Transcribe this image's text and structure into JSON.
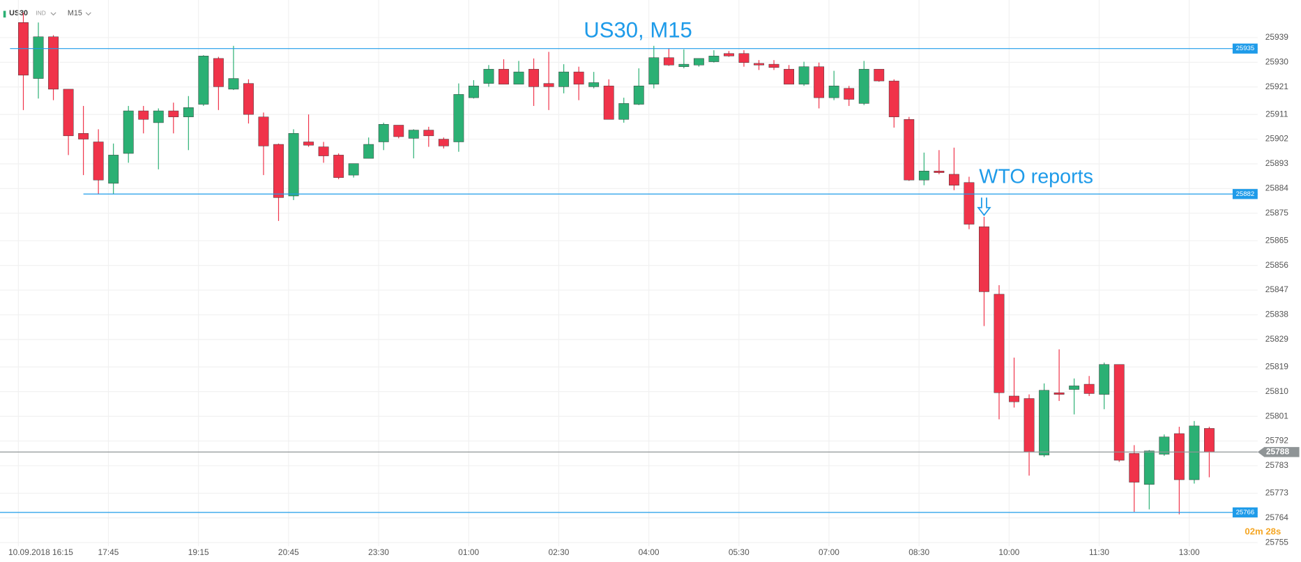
{
  "header": {
    "symbol": "US30",
    "class": "IND",
    "timeframe": "M15"
  },
  "chart_data": {
    "type": "candlestick",
    "title": "US30, M15",
    "annotation": {
      "text": "WTO reports",
      "index": 64
    },
    "countdown": "02m 28s",
    "up_color": "#2bb074",
    "down_color": "#f0334a",
    "grid": true,
    "categories": [
      "10.09.2018 16:15",
      null,
      null,
      null,
      null,
      null,
      "17:45",
      null,
      null,
      null,
      null,
      null,
      "19:15",
      null,
      null,
      null,
      null,
      null,
      "20:45",
      null,
      null,
      null,
      null,
      null,
      "23:30",
      null,
      null,
      null,
      null,
      null,
      "01:00",
      null,
      null,
      null,
      null,
      null,
      "02:30",
      null,
      null,
      null,
      null,
      null,
      "04:00",
      null,
      null,
      null,
      null,
      null,
      "05:30",
      null,
      null,
      null,
      null,
      null,
      "07:00",
      null,
      null,
      null,
      null,
      null,
      "08:30",
      null,
      null,
      null,
      null,
      null,
      "10:00",
      null,
      null,
      null,
      null,
      null,
      "11:30",
      null,
      null,
      null,
      null,
      null,
      "13:00",
      null
    ],
    "open": [
      25944.5,
      25924.1,
      25939.3,
      25920.2,
      25904.1,
      25901.0,
      25885.9,
      25896.8,
      25912.3,
      25908.0,
      25912.3,
      25910.1,
      25914.7,
      25931.4,
      25920.2,
      25922.3,
      25910.1,
      25900.1,
      25881.3,
      25901.0,
      25899.2,
      25896.2,
      25888.9,
      25895.0,
      25901.0,
      25907.1,
      25902.3,
      25905.3,
      25902.0,
      25901.0,
      25917.1,
      25922.3,
      25927.5,
      25922.0,
      25927.5,
      25922.3,
      25921.1,
      25926.5,
      25921.1,
      25921.4,
      25909.2,
      25914.7,
      25922.0,
      25931.7,
      25928.4,
      25929.0,
      25930.2,
      25933.2,
      25933.2,
      25929.6,
      25929.3,
      25927.5,
      25922.0,
      25928.4,
      25917.1,
      25920.5,
      25915.0,
      25927.5,
      25923.2,
      25909.2,
      25887.1,
      25890.4,
      25889.2,
      25886.2,
      25870.1,
      25845.5,
      25808.4,
      25807.5,
      25786.9,
      25809.6,
      25810.8,
      25812.7,
      25809.0,
      25819.9,
      25787.5,
      25776.2,
      25787.2,
      25794.7,
      25777.9,
      25796.6
    ],
    "high": [
      25948.1,
      25944.5,
      25939.9,
      25920.2,
      25914.1,
      25905.6,
      25900.4,
      25914.1,
      25914.1,
      25913.2,
      25915.3,
      25917.7,
      25932.6,
      25932.0,
      25936.0,
      25923.8,
      25911.7,
      25900.4,
      25905.6,
      25911.0,
      25901.0,
      25896.8,
      25893.1,
      25902.6,
      25908.0,
      25907.1,
      25905.6,
      25906.5,
      25902.6,
      25922.3,
      25923.5,
      25929.0,
      25931.1,
      25930.5,
      25931.4,
      25933.8,
      25929.3,
      25928.4,
      25926.5,
      25923.8,
      25917.1,
      25927.8,
      25936.0,
      25935.1,
      25934.7,
      25931.4,
      25934.4,
      25934.1,
      25934.4,
      25930.8,
      25930.8,
      25929.0,
      25930.2,
      25929.9,
      25926.9,
      25921.4,
      25930.5,
      25927.5,
      25923.8,
      25910.1,
      25897.1,
      25898.0,
      25898.9,
      25888.3,
      25873.7,
      25848.8,
      25822.4,
      25809.0,
      25813.0,
      25825.4,
      25814.8,
      25815.7,
      25820.6,
      25819.9,
      25790.5,
      25788.7,
      25794.4,
      25797.2,
      25799.3,
      25797.2
    ],
    "low": [
      25912.6,
      25916.8,
      25916.2,
      25896.2,
      25888.9,
      25881.9,
      25881.9,
      25893.4,
      25904.1,
      25891.0,
      25904.1,
      25898.0,
      25914.1,
      25912.6,
      25919.9,
      25907.7,
      25888.9,
      25872.2,
      25879.8,
      25899.2,
      25893.4,
      25887.4,
      25888.0,
      25895.0,
      25898.0,
      25902.3,
      25895.0,
      25899.2,
      25898.6,
      25897.4,
      25916.8,
      25921.1,
      25922.0,
      25922.0,
      25914.1,
      25912.6,
      25918.7,
      25916.2,
      25920.5,
      25909.2,
      25908.0,
      25914.4,
      25920.5,
      25928.7,
      25927.8,
      25928.4,
      25929.9,
      25932.0,
      25928.4,
      25927.2,
      25927.2,
      25922.0,
      25921.4,
      25913.2,
      25916.2,
      25914.1,
      25914.4,
      25922.9,
      25906.2,
      25886.8,
      25885.2,
      25889.2,
      25883.4,
      25869.2,
      25833.9,
      25799.9,
      25804.2,
      25779.4,
      25786.2,
      25806.6,
      25801.7,
      25808.4,
      25803.6,
      25784.4,
      25766.2,
      25767.1,
      25786.6,
      25765.3,
      25776.5,
      25778.8
    ],
    "close": [
      25925.3,
      25939.3,
      25920.2,
      25903.2,
      25902.0,
      25887.1,
      25896.2,
      25912.3,
      25909.2,
      25912.3,
      25910.1,
      25913.5,
      25932.3,
      25921.1,
      25924.1,
      25911.0,
      25899.5,
      25880.7,
      25904.1,
      25899.8,
      25895.9,
      25888.0,
      25893.1,
      25900.1,
      25907.4,
      25902.9,
      25905.3,
      25903.2,
      25899.5,
      25918.3,
      25921.4,
      25927.5,
      25922.0,
      25926.5,
      25921.1,
      25921.1,
      25926.5,
      25922.0,
      25922.6,
      25909.2,
      25915.0,
      25921.4,
      25931.7,
      25929.0,
      25929.3,
      25931.4,
      25932.3,
      25932.3,
      25929.9,
      25929.0,
      25928.1,
      25922.0,
      25928.4,
      25917.1,
      25921.4,
      25916.5,
      25927.5,
      25923.2,
      25910.1,
      25887.1,
      25890.4,
      25889.8,
      25885.2,
      25871.0,
      25846.4,
      25809.6,
      25806.3,
      25788.1,
      25810.5,
      25809.0,
      25812.1,
      25809.3,
      25819.9,
      25785.0,
      25777.0,
      25788.4,
      25793.5,
      25777.9,
      25797.5,
      25788.0
    ],
    "ylim": [
      25753.7,
      25952.7
    ],
    "yticks": [
      25939,
      25930,
      25921,
      25911,
      25902,
      25893,
      25884,
      25875,
      25865,
      25856,
      25847,
      25838,
      25829,
      25819,
      25810,
      25801,
      25792,
      25783,
      25773,
      25764,
      25755
    ],
    "price_lines": [
      {
        "value": 25935,
        "color": "#1e9be9"
      },
      {
        "value": 25882,
        "color": "#1e9be9"
      },
      {
        "value": 25766,
        "color": "#1e9be9"
      },
      {
        "value": 25788,
        "color": "#8f9496",
        "current": true
      }
    ]
  }
}
